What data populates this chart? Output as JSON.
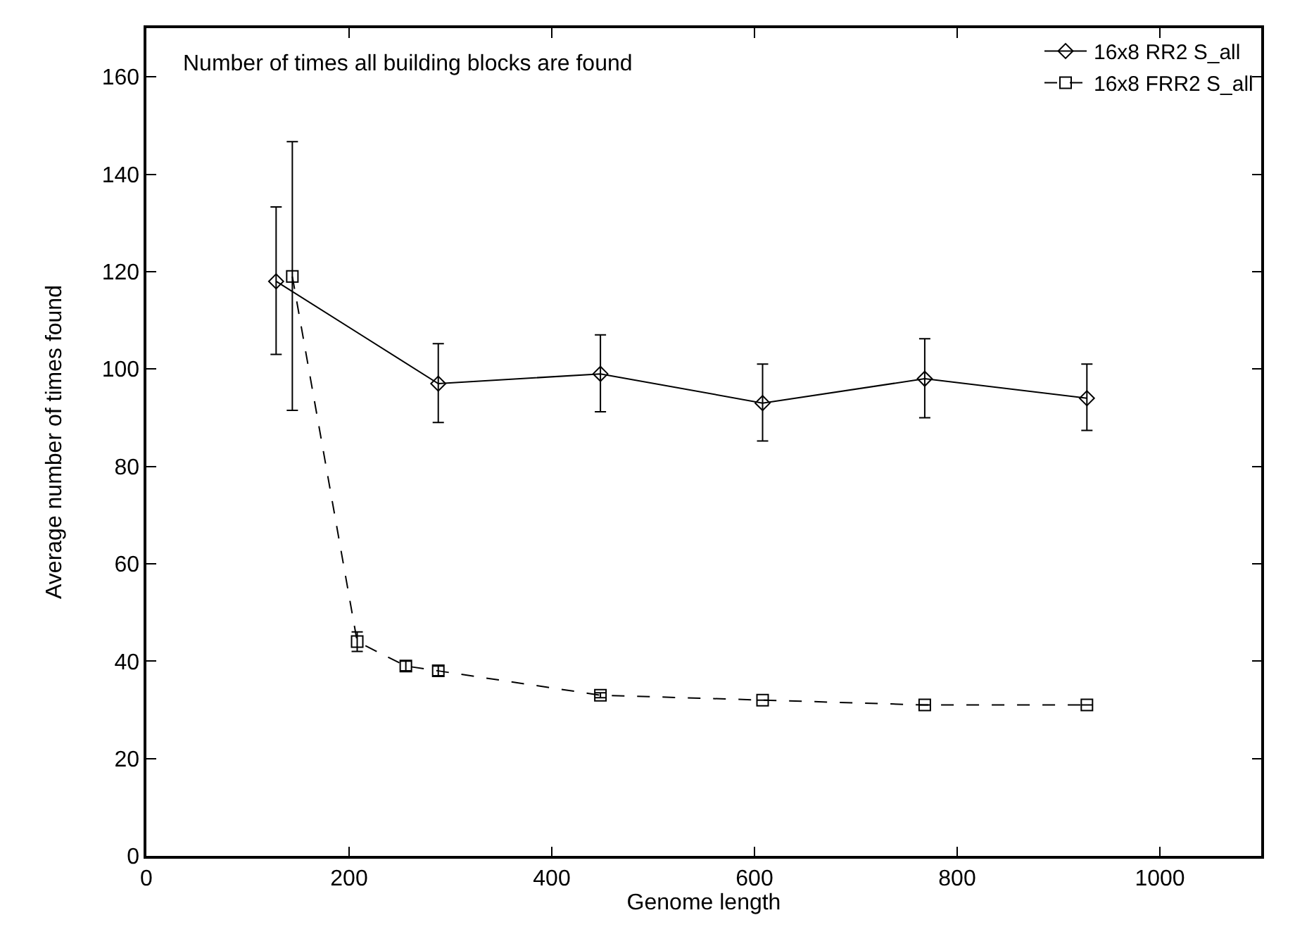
{
  "chart_data": {
    "type": "line",
    "title": "Number of times all building blocks are found",
    "xlabel": "Genome length",
    "ylabel": "Average number of times found",
    "xlim": [
      0,
      1100
    ],
    "xticks": [
      0,
      200,
      400,
      600,
      800,
      1000
    ],
    "ylim": [
      0,
      170
    ],
    "yticks": [
      0,
      20,
      40,
      60,
      80,
      100,
      120,
      140,
      160
    ],
    "grid": false,
    "legend": "top right",
    "series": [
      {
        "name": "16x8 RR2 S_all",
        "color": "#000000",
        "marker": "diamond",
        "line_style": "solid",
        "x": [
          128,
          288,
          448,
          608,
          768,
          928
        ],
        "values": [
          118,
          97,
          99,
          93,
          98,
          94
        ],
        "errors": [
          [
            103,
            133.3
          ],
          [
            89,
            105.2
          ],
          [
            91.2,
            107
          ],
          [
            85.2,
            101
          ],
          [
            90,
            106.2
          ],
          [
            87.4,
            101
          ]
        ]
      },
      {
        "name": "16x8 FRR2 S_all",
        "color": "#000000",
        "marker": "square",
        "line_style": "dashed",
        "x": [
          144,
          208,
          256,
          288,
          448,
          608,
          768,
          928
        ],
        "values": [
          119,
          44,
          39,
          38,
          33,
          32,
          31,
          31
        ],
        "errors": [
          [
            91.5,
            146.7
          ],
          [
            42,
            46
          ],
          [
            38,
            40
          ],
          [
            37,
            39
          ],
          [
            32.5,
            33.5
          ],
          null,
          null,
          null
        ]
      }
    ]
  }
}
